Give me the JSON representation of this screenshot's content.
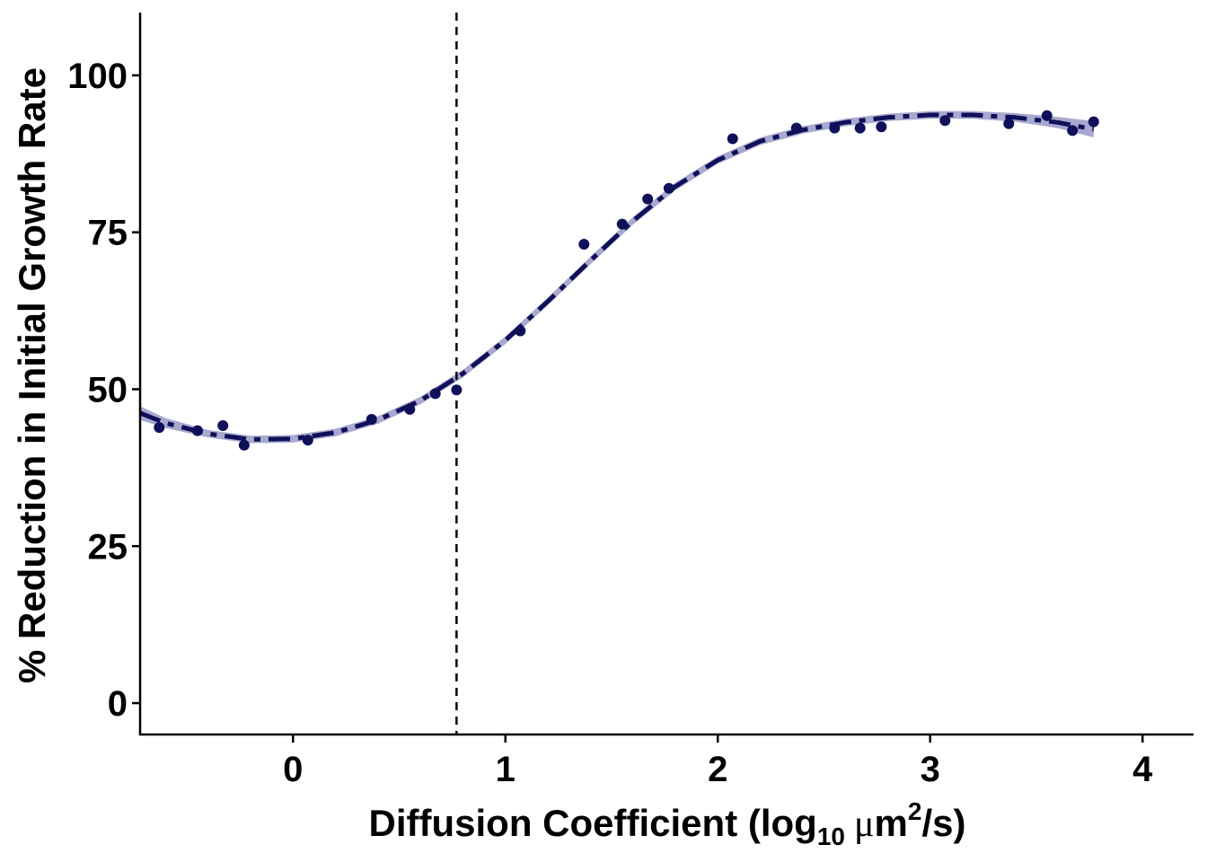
{
  "chart_data": {
    "type": "scatter",
    "xlabel_parts": {
      "prefix": "Diffusion Coefficient (log",
      "sub": "10",
      "mu": "μ",
      "unit": "m",
      "sup": "2",
      "suffix": "/s)"
    },
    "ylabel": "% Reduction in Initial Growth Rate",
    "xlim": [
      -0.72,
      4.24
    ],
    "ylim": [
      -5,
      110
    ],
    "x_ticks": [
      0,
      1,
      2,
      3,
      4
    ],
    "y_ticks": [
      0,
      25,
      50,
      75,
      100
    ],
    "x_tick_labels": [
      "0",
      "1",
      "2",
      "3",
      "4"
    ],
    "y_tick_labels": [
      "0",
      "25",
      "50",
      "75",
      "100"
    ],
    "vline_x": 0.77,
    "points": [
      {
        "x": -0.63,
        "y": 43.9
      },
      {
        "x": -0.45,
        "y": 43.4
      },
      {
        "x": -0.33,
        "y": 44.2
      },
      {
        "x": -0.23,
        "y": 41.1
      },
      {
        "x": 0.07,
        "y": 41.9
      },
      {
        "x": 0.37,
        "y": 45.2
      },
      {
        "x": 0.55,
        "y": 46.8
      },
      {
        "x": 0.67,
        "y": 49.3
      },
      {
        "x": 0.77,
        "y": 49.9
      },
      {
        "x": 1.07,
        "y": 59.3
      },
      {
        "x": 1.37,
        "y": 73.1
      },
      {
        "x": 1.55,
        "y": 76.3
      },
      {
        "x": 1.67,
        "y": 80.3
      },
      {
        "x": 1.77,
        "y": 82.0
      },
      {
        "x": 2.07,
        "y": 89.9
      },
      {
        "x": 2.37,
        "y": 91.6
      },
      {
        "x": 2.55,
        "y": 91.6
      },
      {
        "x": 2.67,
        "y": 91.6
      },
      {
        "x": 2.77,
        "y": 91.8
      },
      {
        "x": 3.07,
        "y": 92.8
      },
      {
        "x": 3.37,
        "y": 92.3
      },
      {
        "x": 3.55,
        "y": 93.6
      },
      {
        "x": 3.67,
        "y": 91.2
      },
      {
        "x": 3.77,
        "y": 92.6
      }
    ],
    "fit": [
      {
        "x": -0.72,
        "y": 46.2
      },
      {
        "x": -0.6,
        "y": 44.6
      },
      {
        "x": -0.4,
        "y": 42.9
      },
      {
        "x": -0.2,
        "y": 42.0
      },
      {
        "x": 0.0,
        "y": 42.1
      },
      {
        "x": 0.2,
        "y": 43.1
      },
      {
        "x": 0.4,
        "y": 45.1
      },
      {
        "x": 0.6,
        "y": 48.2
      },
      {
        "x": 0.8,
        "y": 52.5
      },
      {
        "x": 1.0,
        "y": 57.8
      },
      {
        "x": 1.2,
        "y": 64.0
      },
      {
        "x": 1.4,
        "y": 70.5
      },
      {
        "x": 1.6,
        "y": 76.8
      },
      {
        "x": 1.8,
        "y": 82.3
      },
      {
        "x": 2.0,
        "y": 86.5
      },
      {
        "x": 2.2,
        "y": 89.5
      },
      {
        "x": 2.4,
        "y": 91.3
      },
      {
        "x": 2.6,
        "y": 92.5
      },
      {
        "x": 2.8,
        "y": 93.3
      },
      {
        "x": 3.0,
        "y": 93.7
      },
      {
        "x": 3.2,
        "y": 93.7
      },
      {
        "x": 3.4,
        "y": 93.3
      },
      {
        "x": 3.6,
        "y": 92.5
      },
      {
        "x": 3.77,
        "y": 91.4
      }
    ],
    "band_halfwidth": [
      1.1,
      0.8,
      0.6,
      0.6,
      0.6,
      0.6,
      0.6,
      0.6,
      0.6,
      0.6,
      0.6,
      0.6,
      0.6,
      0.6,
      0.6,
      0.6,
      0.6,
      0.6,
      0.6,
      0.6,
      0.6,
      0.7,
      0.9,
      1.3
    ],
    "grid": false,
    "legend": "none",
    "colors": {
      "points": "#10105a",
      "fit_line": "#10105a",
      "band": "#a9a9cf",
      "vline": "#000000",
      "axis": "#000000"
    }
  }
}
